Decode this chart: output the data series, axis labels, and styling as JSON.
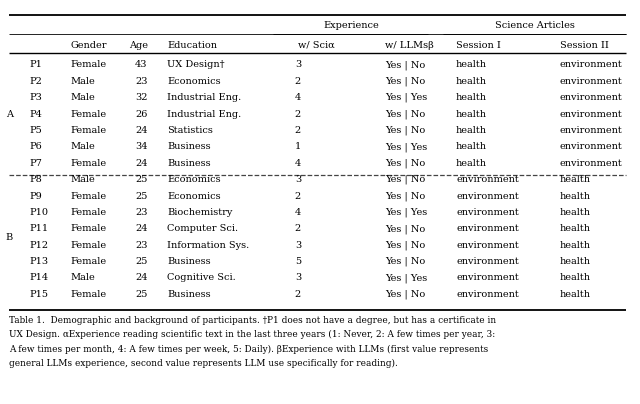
{
  "group_header_1": "Experience",
  "group_header_2": "Science Articles",
  "col_headers": [
    "",
    "Gender",
    "Age",
    "Education",
    "w/ Sciα",
    "w/ LLMsβ",
    "Session I",
    "Session II"
  ],
  "group_a_label": "A",
  "group_b_label": "B",
  "rows": [
    [
      "P1",
      "Female",
      "43",
      "UX Design†",
      "3",
      "Yes | No",
      "health",
      "environment"
    ],
    [
      "P2",
      "Male",
      "23",
      "Economics",
      "2",
      "Yes | No",
      "health",
      "environment"
    ],
    [
      "P3",
      "Male",
      "32",
      "Industrial Eng.",
      "4",
      "Yes | Yes",
      "health",
      "environment"
    ],
    [
      "P4",
      "Female",
      "26",
      "Industrial Eng.",
      "2",
      "Yes | No",
      "health",
      "environment"
    ],
    [
      "P5",
      "Female",
      "24",
      "Statistics",
      "2",
      "Yes | No",
      "health",
      "environment"
    ],
    [
      "P6",
      "Male",
      "34",
      "Business",
      "1",
      "Yes | Yes",
      "health",
      "environment"
    ],
    [
      "P7",
      "Female",
      "24",
      "Business",
      "4",
      "Yes | No",
      "health",
      "environment"
    ],
    [
      "P8",
      "Male",
      "25",
      "Economics",
      "3",
      "Yes | No",
      "environment",
      "health"
    ],
    [
      "P9",
      "Female",
      "25",
      "Economics",
      "2",
      "Yes | No",
      "environment",
      "health"
    ],
    [
      "P10",
      "Female",
      "23",
      "Biochemistry",
      "4",
      "Yes | Yes",
      "environment",
      "health"
    ],
    [
      "P11",
      "Female",
      "24",
      "Computer Sci.",
      "2",
      "Yes | No",
      "environment",
      "health"
    ],
    [
      "P12",
      "Female",
      "23",
      "Information Sys.",
      "3",
      "Yes | No",
      "environment",
      "health"
    ],
    [
      "P13",
      "Female",
      "25",
      "Business",
      "5",
      "Yes | No",
      "environment",
      "health"
    ],
    [
      "P14",
      "Male",
      "24",
      "Cognitive Sci.",
      "3",
      "Yes | Yes",
      "environment",
      "health"
    ],
    [
      "P15",
      "Female",
      "25",
      "Business",
      "2",
      "Yes | No",
      "environment",
      "health"
    ]
  ],
  "group_a_rows": 7,
  "group_b_rows": 8,
  "font_size": 7.0,
  "cap_font_size": 6.4,
  "bg_color": "#ffffff",
  "text_color": "#000000",
  "caption_lines": [
    "Table 1.  Demographic and background of participants. †P1 does not have a degree, but has a certificate in",
    "UX Design. αExperience reading scientific text in the last three years (1: Never, 2: A few times per year, 3:",
    "A few times per month, 4: A few times per week, 5: Daily). βExperience with LLMs (first value represents",
    "general LLMs experience, second value represents LLM use specifically for reading)."
  ]
}
